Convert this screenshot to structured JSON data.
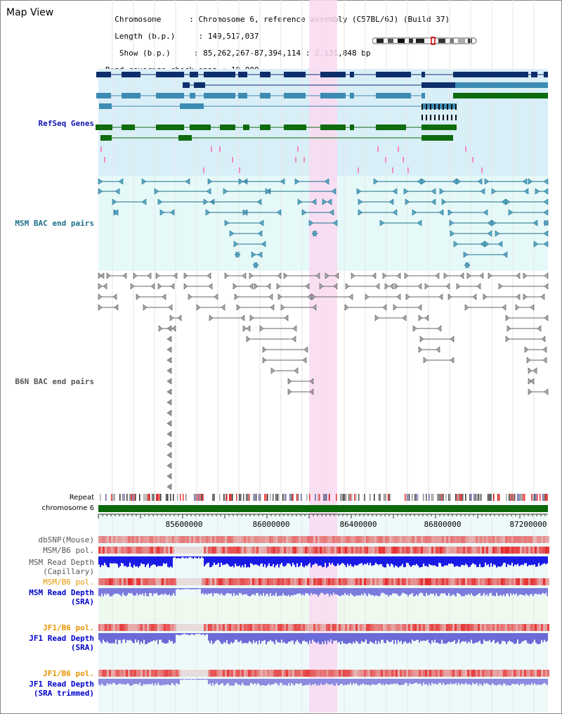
{
  "title": "Map View",
  "info": {
    "chromosome_key": "Chromosome",
    "chromosome_val": "Chromosome 6, reference assembly (C57BL/6J) (Build 37)",
    "length_key": "Length (b.p.)",
    "length_val": "149,517,037",
    "show_key": "Show (b.p.)",
    "show_val": "85,262,267-87,394,114 : 2,131,848 bp",
    "coverage_key": "Read coverage check span",
    "coverage_val": "10,000"
  },
  "tracks": {
    "refseq": "RefSeq Genes",
    "msm_bac": "MSM BAC end pairs",
    "b6n_bac": "B6N BAC end pairs",
    "repeat": "Repeat",
    "chromosome": "chromosome 6",
    "dbsnp": "dbSNP(Mouse)",
    "msm_b6_pol": "MSM/B6 pol.",
    "msm_read_depth_cap": "MSM Read Depth\n(Capillary)",
    "msm_b6_pol_sra": "MSM/B6 pol.",
    "msm_read_depth_sra": "MSM Read Depth\n(SRA)",
    "jf1_b6_pol": "JF1/B6 pol.",
    "jf1_read_depth_sra": "JF1 Read Depth\n(SRA)",
    "jf1_b6_pol_trim": "JF1/B6 pol.",
    "jf1_read_depth_trim": "JF1 Read Depth\n(SRA trimmed)"
  },
  "axis": {
    "ticks": [
      "85600000",
      "86000000",
      "86400000",
      "86800000",
      "87200000"
    ]
  },
  "colors": {
    "refseq_bg": "#d9eff8",
    "msm_bg": "#e6f9f9",
    "highlight": "#f9d9f1",
    "msm_label": "#1e6f8c",
    "refseq_label": "#1515b4",
    "b6n_label": "#555555",
    "orange_label": "#e69500",
    "blue_label": "#0000cc"
  }
}
